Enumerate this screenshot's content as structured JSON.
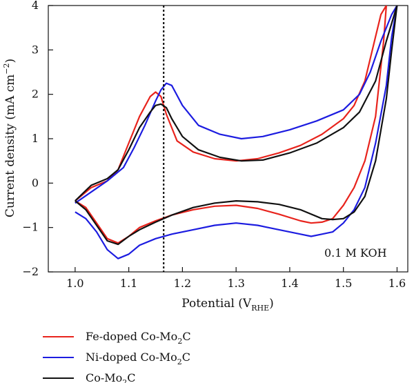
{
  "chart_data": {
    "type": "line",
    "title": "",
    "xlabel": "Potential (V",
    "xlabel_sub": "RHE",
    "xlabel_close": ")",
    "ylabel": "Current density (mA cm",
    "ylabel_sup": "−2",
    "ylabel_close": ")",
    "xlim": [
      0.95,
      1.62
    ],
    "ylim": [
      -2,
      4
    ],
    "xticks": [
      1.0,
      1.1,
      1.2,
      1.3,
      1.4,
      1.5,
      1.6
    ],
    "xtick_labels": [
      "1.0",
      "1.1",
      "1.2",
      "1.3",
      "1.4",
      "1.5",
      "1.6"
    ],
    "yticks": [
      -2,
      -1,
      0,
      1,
      2,
      3,
      4
    ],
    "ytick_labels": [
      "−2",
      "−1",
      "0",
      "1",
      "2",
      "3",
      "4"
    ],
    "grid": false,
    "annotation": "0.1 M KOH",
    "reference_line_x": 1.165,
    "legend_position": "bottom",
    "series": [
      {
        "name": "Fe-doped Co-Mo",
        "name_sub": "2",
        "name_suffix": "C",
        "color": "#e8231c",
        "x": [
          1.0,
          1.03,
          1.06,
          1.08,
          1.1,
          1.12,
          1.14,
          1.15,
          1.16,
          1.17,
          1.19,
          1.22,
          1.26,
          1.3,
          1.34,
          1.38,
          1.42,
          1.46,
          1.5,
          1.52,
          1.54,
          1.56,
          1.57,
          1.58,
          1.575,
          1.56,
          1.54,
          1.52,
          1.5,
          1.48,
          1.46,
          1.44,
          1.42,
          1.38,
          1.34,
          1.3,
          1.26,
          1.22,
          1.18,
          1.15,
          1.12,
          1.1,
          1.08,
          1.06,
          1.04,
          1.02,
          1.0
        ],
        "y": [
          -0.4,
          -0.1,
          0.05,
          0.3,
          0.9,
          1.5,
          1.95,
          2.05,
          1.95,
          1.55,
          0.95,
          0.7,
          0.55,
          0.5,
          0.55,
          0.68,
          0.85,
          1.1,
          1.45,
          1.75,
          2.3,
          3.3,
          3.8,
          4.0,
          3.2,
          1.5,
          0.5,
          -0.1,
          -0.5,
          -0.8,
          -0.88,
          -0.9,
          -0.85,
          -0.7,
          -0.57,
          -0.5,
          -0.52,
          -0.6,
          -0.72,
          -0.85,
          -1.0,
          -1.2,
          -1.35,
          -1.25,
          -0.9,
          -0.55,
          -0.4
        ]
      },
      {
        "name": "Ni-doped Co-Mo",
        "name_sub": "2",
        "name_suffix": "C",
        "color": "#1c1ce0",
        "x": [
          1.0,
          1.03,
          1.06,
          1.09,
          1.11,
          1.13,
          1.15,
          1.16,
          1.17,
          1.18,
          1.2,
          1.23,
          1.27,
          1.31,
          1.35,
          1.4,
          1.45,
          1.5,
          1.53,
          1.55,
          1.57,
          1.59,
          1.6,
          1.59,
          1.58,
          1.56,
          1.54,
          1.52,
          1.5,
          1.48,
          1.46,
          1.44,
          1.42,
          1.38,
          1.34,
          1.3,
          1.26,
          1.22,
          1.18,
          1.15,
          1.12,
          1.1,
          1.08,
          1.06,
          1.04,
          1.02,
          1.0
        ],
        "y": [
          -0.45,
          -0.2,
          0.05,
          0.35,
          0.8,
          1.3,
          1.85,
          2.1,
          2.25,
          2.2,
          1.75,
          1.3,
          1.1,
          1.0,
          1.05,
          1.2,
          1.4,
          1.65,
          2.0,
          2.5,
          3.2,
          3.8,
          4.0,
          3.3,
          2.2,
          0.9,
          -0.1,
          -0.6,
          -0.9,
          -1.1,
          -1.15,
          -1.2,
          -1.15,
          -1.05,
          -0.95,
          -0.9,
          -0.95,
          -1.05,
          -1.15,
          -1.25,
          -1.4,
          -1.6,
          -1.7,
          -1.5,
          -1.1,
          -0.8,
          -0.65
        ]
      },
      {
        "name": "Co-Mo",
        "name_sub": "2",
        "name_suffix": "C",
        "color": "#111111",
        "x": [
          1.0,
          1.03,
          1.06,
          1.08,
          1.1,
          1.12,
          1.14,
          1.15,
          1.16,
          1.17,
          1.18,
          1.2,
          1.23,
          1.27,
          1.31,
          1.35,
          1.4,
          1.45,
          1.5,
          1.53,
          1.56,
          1.58,
          1.6,
          1.59,
          1.58,
          1.56,
          1.54,
          1.52,
          1.5,
          1.48,
          1.46,
          1.42,
          1.38,
          1.34,
          1.3,
          1.26,
          1.22,
          1.18,
          1.15,
          1.12,
          1.1,
          1.08,
          1.06,
          1.04,
          1.02,
          1.0
        ],
        "y": [
          -0.4,
          -0.05,
          0.1,
          0.3,
          0.75,
          1.25,
          1.6,
          1.75,
          1.78,
          1.7,
          1.45,
          1.05,
          0.75,
          0.58,
          0.5,
          0.52,
          0.68,
          0.9,
          1.25,
          1.6,
          2.3,
          3.2,
          4.0,
          3.0,
          1.9,
          0.5,
          -0.3,
          -0.65,
          -0.8,
          -0.82,
          -0.8,
          -0.6,
          -0.48,
          -0.42,
          -0.4,
          -0.45,
          -0.55,
          -0.72,
          -0.88,
          -1.05,
          -1.2,
          -1.38,
          -1.3,
          -0.95,
          -0.6,
          -0.4
        ]
      }
    ]
  }
}
